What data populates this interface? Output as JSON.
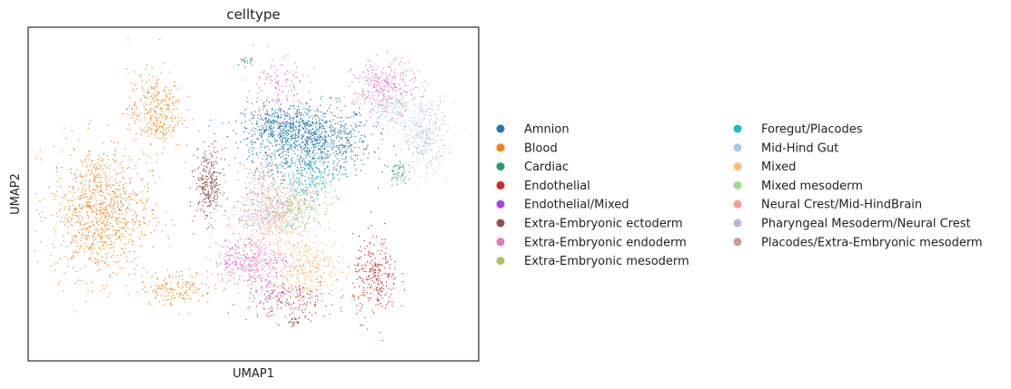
{
  "chart_data": {
    "type": "scatter",
    "title": "celltype",
    "xlabel": "UMAP1",
    "ylabel": "UMAP2",
    "xlim": [
      0,
      100
    ],
    "ylim": [
      0,
      100
    ],
    "grid": false,
    "ticks": false,
    "legend_position": "right",
    "series": [
      {
        "name": "Amnion",
        "color": "#1f77b4",
        "clusters": [
          {
            "cx": 63,
            "cy": 66,
            "rx": 13,
            "ry": 11,
            "n": 900
          },
          {
            "cx": 55,
            "cy": 70,
            "rx": 8,
            "ry": 7,
            "n": 300
          }
        ]
      },
      {
        "name": "Blood",
        "color": "#ff7f0e",
        "clusters": [
          {
            "cx": 16,
            "cy": 45,
            "rx": 11,
            "ry": 20,
            "n": 900
          },
          {
            "cx": 28,
            "cy": 75,
            "rx": 6,
            "ry": 12,
            "n": 300
          },
          {
            "cx": 33,
            "cy": 22,
            "rx": 8,
            "ry": 5,
            "n": 150
          }
        ]
      },
      {
        "name": "Cardiac",
        "color": "#279e68",
        "clusters": [
          {
            "cx": 82,
            "cy": 57,
            "rx": 2,
            "ry": 4,
            "n": 50
          },
          {
            "cx": 48,
            "cy": 90,
            "rx": 2,
            "ry": 2,
            "n": 20
          }
        ]
      },
      {
        "name": "Endothelial",
        "color": "#d62728",
        "clusters": [
          {
            "cx": 77,
            "cy": 25,
            "rx": 5,
            "ry": 12,
            "n": 250
          },
          {
            "cx": 58,
            "cy": 18,
            "rx": 10,
            "ry": 6,
            "n": 120
          }
        ]
      },
      {
        "name": "Endothelial/Mixed",
        "color": "#aa40fc",
        "clusters": [
          {
            "cx": 55,
            "cy": 22,
            "rx": 9,
            "ry": 8,
            "n": 80
          }
        ]
      },
      {
        "name": "Extra-Embryonic ectoderm",
        "color": "#8c564b",
        "clusters": [
          {
            "cx": 40,
            "cy": 53,
            "rx": 3,
            "ry": 11,
            "n": 280
          },
          {
            "cx": 58,
            "cy": 12,
            "rx": 3,
            "ry": 3,
            "n": 25
          }
        ]
      },
      {
        "name": "Extra-Embryonic endoderm",
        "color": "#e377c2",
        "clusters": [
          {
            "cx": 79,
            "cy": 82,
            "rx": 7,
            "ry": 8,
            "n": 300
          },
          {
            "cx": 49,
            "cy": 30,
            "rx": 8,
            "ry": 7,
            "n": 350
          },
          {
            "cx": 55,
            "cy": 82,
            "rx": 7,
            "ry": 9,
            "n": 120
          }
        ]
      },
      {
        "name": "Extra-Embryonic mesoderm",
        "color": "#b5bd61",
        "clusters": [
          {
            "cx": 60,
            "cy": 48,
            "rx": 7,
            "ry": 8,
            "n": 150
          }
        ]
      },
      {
        "name": "Foregut/Placodes",
        "color": "#17becf",
        "clusters": [
          {
            "cx": 62,
            "cy": 55,
            "rx": 7,
            "ry": 7,
            "n": 150
          }
        ]
      },
      {
        "name": "Mid-Hind Gut",
        "color": "#aec7e8",
        "clusters": [
          {
            "cx": 88,
            "cy": 68,
            "rx": 5,
            "ry": 11,
            "n": 320
          },
          {
            "cx": 80,
            "cy": 76,
            "rx": 5,
            "ry": 6,
            "n": 120
          }
        ]
      },
      {
        "name": "Mixed",
        "color": "#ffbb78",
        "clusters": [
          {
            "cx": 62,
            "cy": 28,
            "rx": 8,
            "ry": 9,
            "n": 350
          },
          {
            "cx": 53,
            "cy": 40,
            "rx": 8,
            "ry": 6,
            "n": 120
          }
        ]
      },
      {
        "name": "Mixed mesoderm",
        "color": "#98df8a",
        "clusters": [
          {
            "cx": 57,
            "cy": 45,
            "rx": 7,
            "ry": 6,
            "n": 150
          }
        ]
      },
      {
        "name": "Neural Crest/Mid-HindBrain",
        "color": "#ff9896",
        "clusters": [
          {
            "cx": 55,
            "cy": 46,
            "rx": 9,
            "ry": 8,
            "n": 200
          }
        ]
      },
      {
        "name": "Pharyngeal Mesoderm/Neural Crest",
        "color": "#c5b0d5",
        "clusters": [
          {
            "cx": 52,
            "cy": 44,
            "rx": 9,
            "ry": 7,
            "n": 220
          }
        ]
      },
      {
        "name": "Placodes/Extra-Embryonic mesoderm",
        "color": "#c49c94",
        "clusters": [
          {
            "cx": 52,
            "cy": 55,
            "rx": 6,
            "ry": 7,
            "n": 120
          }
        ]
      }
    ]
  }
}
